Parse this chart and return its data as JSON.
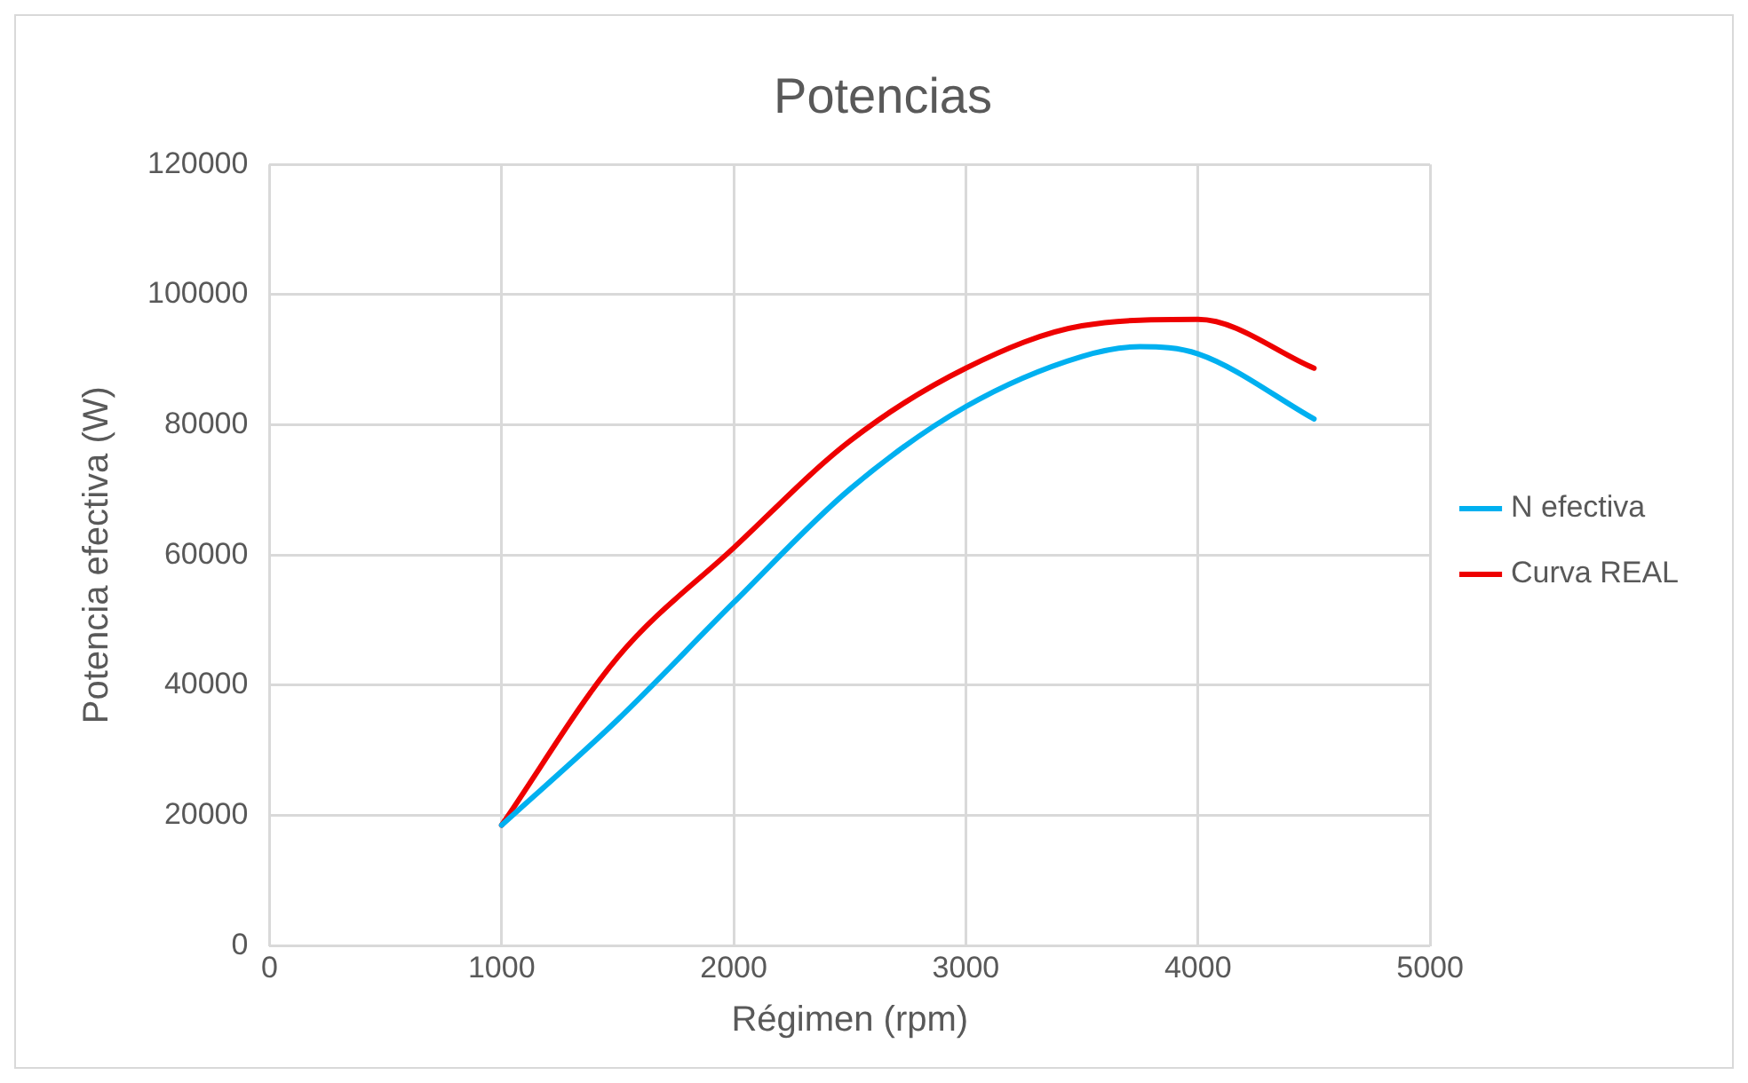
{
  "chart_data": {
    "type": "line",
    "title": "Potencias",
    "xlabel": "Régimen (rpm)",
    "ylabel": "Potencia efectiva (W)",
    "xlim": [
      0,
      5000
    ],
    "xticks": [
      0,
      1000,
      2000,
      3000,
      4000,
      5000
    ],
    "ylim": [
      0,
      120000
    ],
    "yticks": [
      0,
      20000,
      40000,
      60000,
      80000,
      100000,
      120000
    ],
    "grid": true,
    "legend": "right",
    "marker": "none",
    "line_style": "solid",
    "series": [
      {
        "name": "N efectiva",
        "color": "#00b0f0",
        "x": [
          1000,
          1500,
          2000,
          2500,
          3000,
          3500,
          3750,
          4000,
          4500
        ],
        "values": [
          18500,
          34700,
          52700,
          70100,
          82800,
          90500,
          92000,
          90900,
          80900
        ]
      },
      {
        "name": "Curva REAL",
        "color": "#ee0000",
        "x": [
          1000,
          1500,
          2000,
          2500,
          3000,
          3500,
          4000,
          4500
        ],
        "values": [
          18500,
          44300,
          61100,
          77500,
          88700,
          95200,
          96200,
          88700
        ]
      }
    ]
  }
}
